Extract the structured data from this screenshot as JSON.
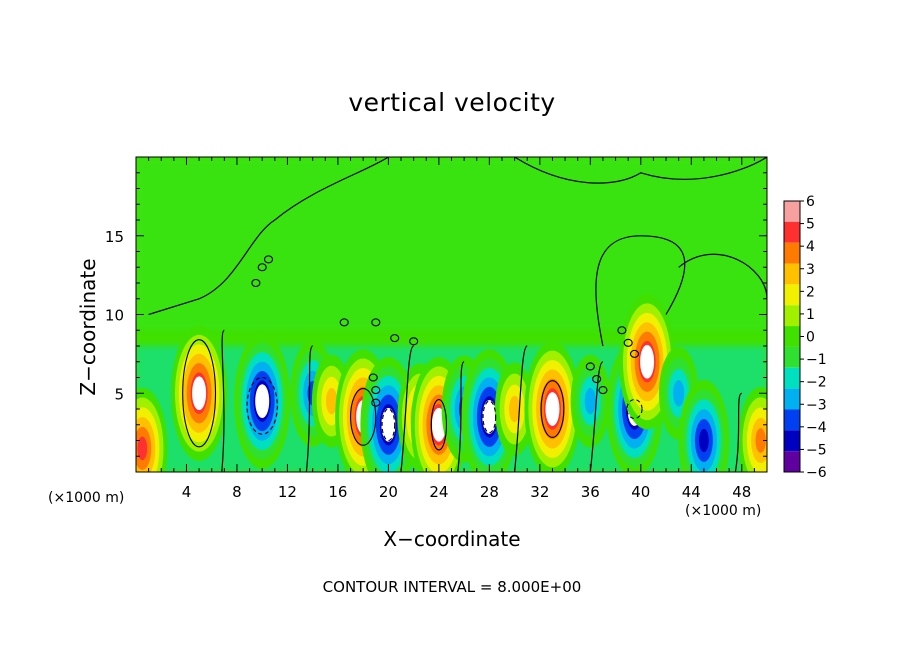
{
  "chart_data": {
    "type": "heatmap",
    "title": "vertical velocity",
    "xlabel": "X−coordinate",
    "ylabel": "Z−coordinate",
    "x_unit": "(×1000 m)",
    "footer": "CONTOUR INTERVAL = 8.000E+00",
    "xlim": [
      0,
      50
    ],
    "ylim": [
      0,
      20
    ],
    "x_ticks": [
      4,
      8,
      12,
      16,
      20,
      24,
      28,
      32,
      36,
      40,
      44,
      48
    ],
    "y_ticks": [
      5,
      10,
      15
    ],
    "colorbar": {
      "min": -6,
      "max": 6,
      "ticks": [
        6,
        5,
        4,
        3,
        2,
        1,
        0,
        -1,
        -2,
        -3,
        -4,
        -5,
        -6
      ],
      "colors": [
        "#f7a0a0",
        "#ff3030",
        "#ff7a00",
        "#ffc000",
        "#f0f000",
        "#a0f000",
        "#40e000",
        "#30e030",
        "#00e0c0",
        "#00b0f0",
        "#0040f0",
        "#0000c0",
        "#6000a0"
      ]
    },
    "features": [
      {
        "x": 5,
        "z": 5,
        "value": 6
      },
      {
        "x": 10,
        "z": 4.5,
        "value": -6
      },
      {
        "x": 14,
        "z": 5,
        "value": -4
      },
      {
        "x": 15.5,
        "z": 4.5,
        "value": 3
      },
      {
        "x": 18,
        "z": 3.5,
        "value": 6
      },
      {
        "x": 20,
        "z": 3,
        "value": -6
      },
      {
        "x": 22.5,
        "z": 3.5,
        "value": 4
      },
      {
        "x": 24,
        "z": 3,
        "value": 6
      },
      {
        "x": 26,
        "z": 4,
        "value": -4
      },
      {
        "x": 28,
        "z": 3.5,
        "value": -6
      },
      {
        "x": 30,
        "z": 4,
        "value": 3
      },
      {
        "x": 33,
        "z": 4,
        "value": 6
      },
      {
        "x": 36,
        "z": 4.5,
        "value": -3
      },
      {
        "x": 39.5,
        "z": 4,
        "value": -6
      },
      {
        "x": 40.5,
        "z": 7,
        "value": 6
      },
      {
        "x": 43,
        "z": 5,
        "value": -3
      },
      {
        "x": 45,
        "z": 2,
        "value": -5
      },
      {
        "x": 49.5,
        "z": 2,
        "value": 4
      },
      {
        "x": 0.5,
        "z": 1.5,
        "value": 5
      }
    ]
  }
}
